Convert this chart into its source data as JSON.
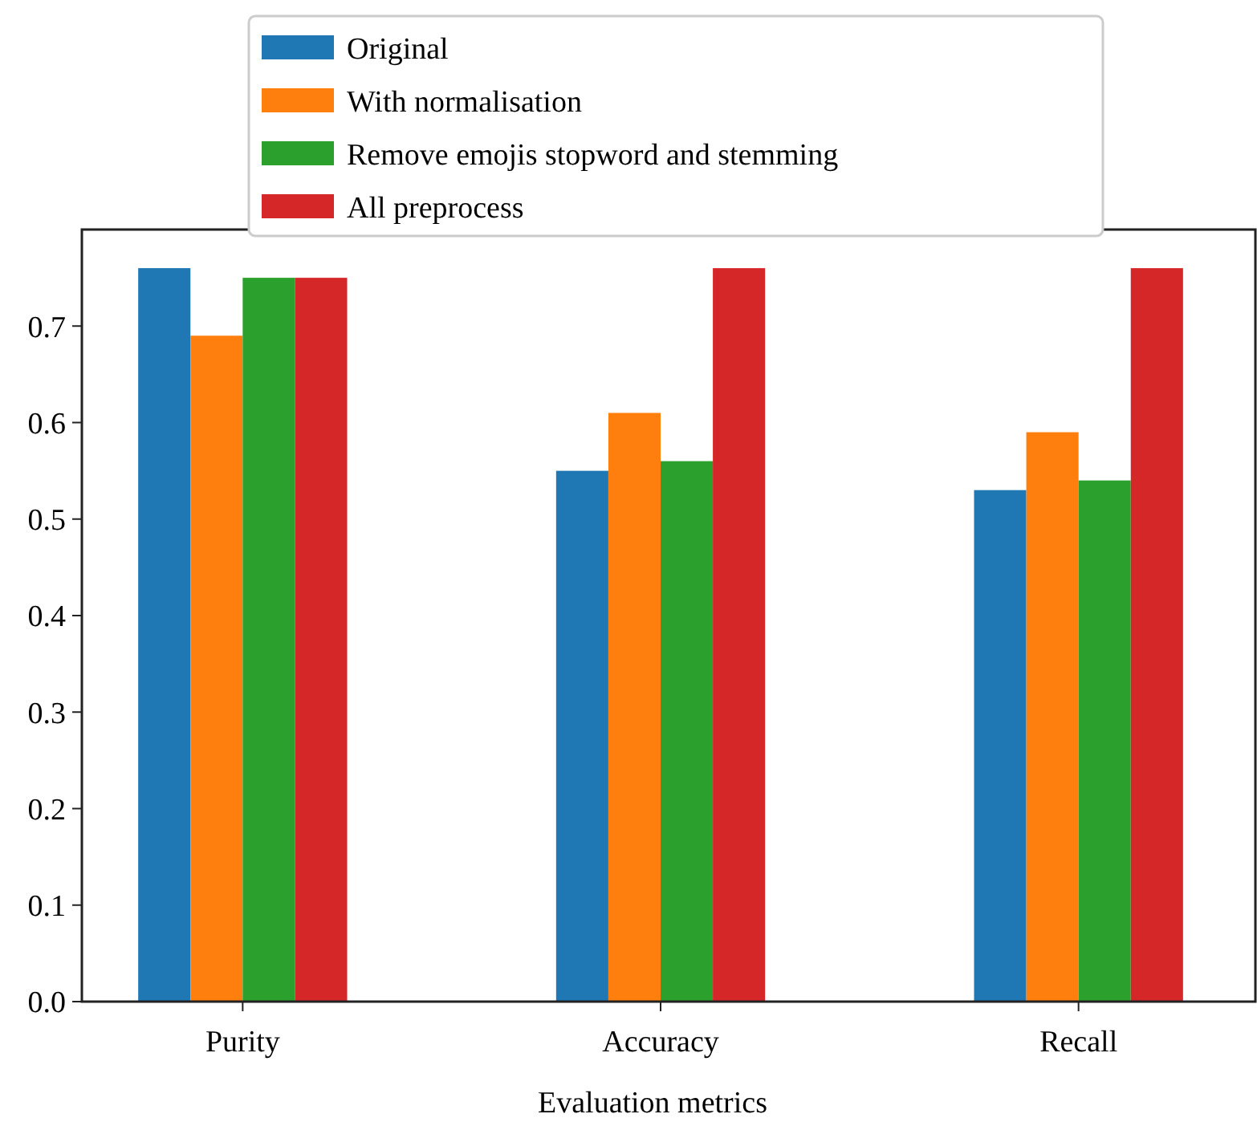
{
  "chart_data": {
    "type": "bar",
    "xlabel": "Evaluation metrics",
    "categories": [
      "Purity",
      "Accuracy",
      "Recall"
    ],
    "series": [
      {
        "name": "Original",
        "color": "#1f77b4",
        "values": [
          0.76,
          0.55,
          0.53
        ]
      },
      {
        "name": "With normalisation",
        "color": "#ff7f0e",
        "values": [
          0.69,
          0.61,
          0.59
        ]
      },
      {
        "name": "Remove emojis stopword and stemming",
        "color": "#2ca02c",
        "values": [
          0.75,
          0.56,
          0.54
        ]
      },
      {
        "name": "All preprocess",
        "color": "#d62728",
        "values": [
          0.75,
          0.76,
          0.76
        ]
      }
    ],
    "ylim": [
      0,
      0.8
    ],
    "yticks": [
      {
        "value": 0,
        "label": "0.0"
      },
      0.1,
      0.2,
      0.3,
      0.4,
      0.5,
      0.6,
      0.7
    ],
    "legend": "top",
    "grid": false
  }
}
